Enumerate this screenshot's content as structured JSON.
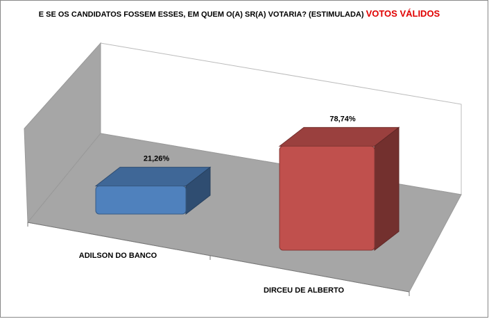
{
  "chart_data": {
    "type": "bar3d",
    "title": "E SE OS CANDIDATOS FOSSEM ESSES, EM QUEM O(A) SR(A) VOTARIA? (ESTIMULADA)",
    "title_highlight": "VOTOS VÁLIDOS",
    "categories": [
      "ADILSON DO BANCO",
      "DIRCEU DE ALBERTO"
    ],
    "values": [
      21.26,
      78.74
    ],
    "value_labels": [
      "21,26%",
      "78,74%"
    ],
    "colors": [
      "#4f81bd",
      "#c0504d"
    ]
  }
}
